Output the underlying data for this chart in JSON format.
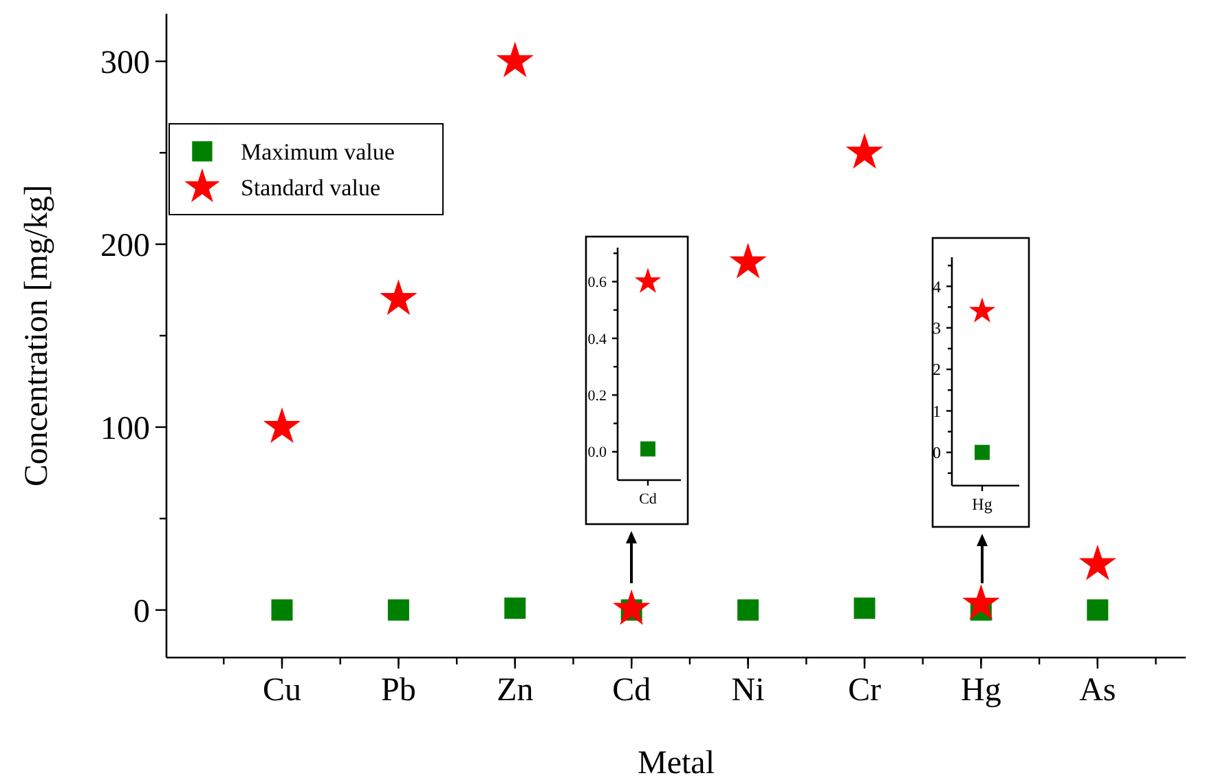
{
  "chart_data": [
    {
      "type": "scatter",
      "xlabel": "Metal",
      "ylabel": "Concentration [mg/kg]",
      "categories": [
        "Cu",
        "Pb",
        "Zn",
        "Cd",
        "Ni",
        "Cr",
        "Hg",
        "As"
      ],
      "ylim": [
        -26,
        326
      ],
      "yticks": [
        0,
        {
          "value": 50,
          "label": null
        },
        100,
        {
          "value": 150,
          "label": null
        },
        200,
        {
          "value": 250,
          "label": null
        },
        300
      ],
      "legend": "top left",
      "grid": false,
      "series": [
        {
          "name": "Maximum value",
          "color": "#008000",
          "marker": "square",
          "values": [
            0,
            0,
            1,
            0,
            0,
            1,
            0,
            0
          ]
        },
        {
          "name": "Standard value",
          "color": "#ff0000",
          "marker": "star",
          "values": [
            100,
            170,
            300,
            0.6,
            190,
            250,
            3.4,
            25
          ]
        }
      ]
    },
    {
      "type": "scatter",
      "categories": [
        "Cd"
      ],
      "ylim": [
        -0.1,
        0.72
      ],
      "yticks": [
        {
          "value": 0,
          "label": "0.0"
        },
        {
          "value": 0.1,
          "label": null
        },
        {
          "value": 0.2,
          "label": "0.2"
        },
        {
          "value": 0.3,
          "label": null
        },
        {
          "value": 0.4,
          "label": "0.4"
        },
        {
          "value": 0.5,
          "label": null
        },
        {
          "value": 0.6,
          "label": "0.6"
        },
        {
          "value": 0.7,
          "label": null
        }
      ],
      "grid": false,
      "series": [
        {
          "color": "#008000",
          "marker": "square",
          "values": [
            0.01
          ]
        },
        {
          "color": "#ff0000",
          "marker": "star",
          "values": [
            0.6
          ]
        }
      ]
    },
    {
      "type": "scatter",
      "categories": [
        "Hg"
      ],
      "ylim": [
        -0.8,
        4.7
      ],
      "yticks": [
        {
          "value": -0.5,
          "label": null
        },
        0,
        {
          "value": 0.5,
          "label": null
        },
        1,
        {
          "value": 1.5,
          "label": null
        },
        2,
        {
          "value": 2.5,
          "label": null
        },
        3,
        {
          "value": 3.5,
          "label": null
        },
        4,
        {
          "value": 4.5,
          "label": null
        }
      ],
      "grid": false,
      "series": [
        {
          "color": "#008000",
          "marker": "square",
          "values": [
            0
          ]
        },
        {
          "color": "#ff0000",
          "marker": "star",
          "values": [
            3.4
          ]
        }
      ]
    }
  ]
}
